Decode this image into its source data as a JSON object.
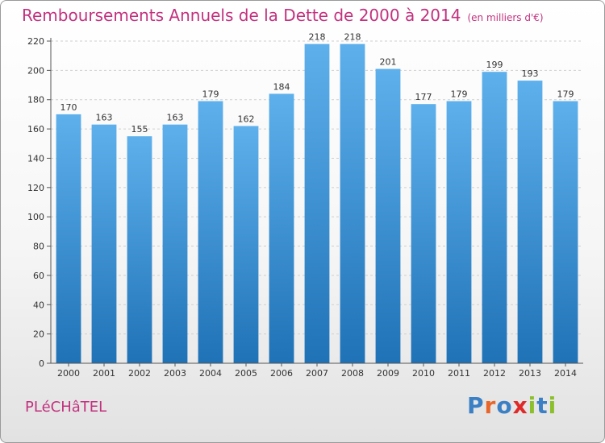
{
  "header": {
    "title": "Remboursements Annuels de la Dette de 2000 à 2014",
    "unit": "(en milliers d'€)"
  },
  "footer": {
    "city": "PLéCHâTEL",
    "brand": "Proxiti",
    "brand_letters": [
      {
        "ch": "P",
        "color": "#3b7fc4"
      },
      {
        "ch": "r",
        "color": "#e8662a"
      },
      {
        "ch": "o",
        "color": "#3b7fc4"
      },
      {
        "ch": "x",
        "color": "#e02a2a"
      },
      {
        "ch": "i",
        "color": "#8bbf2c"
      },
      {
        "ch": "t",
        "color": "#3b7fc4"
      },
      {
        "ch": "i",
        "color": "#8bbf2c"
      }
    ]
  },
  "colors": {
    "accent": "#c2317e",
    "bar_top": "#5eb0ec",
    "bar_bottom": "#1f72b6",
    "grid": "#cfcfcf"
  },
  "chart_data": {
    "type": "bar",
    "title": "Remboursements Annuels de la Dette de 2000 à 2014",
    "xlabel": "",
    "ylabel": "",
    "categories": [
      "2000",
      "2001",
      "2002",
      "2003",
      "2004",
      "2005",
      "2006",
      "2007",
      "2008",
      "2009",
      "2010",
      "2011",
      "2012",
      "2013",
      "2014"
    ],
    "values": [
      170,
      163,
      155,
      163,
      179,
      162,
      184,
      218,
      218,
      201,
      177,
      179,
      199,
      193,
      179
    ],
    "ylim": [
      0,
      220
    ],
    "yticks": [
      0,
      20,
      40,
      60,
      80,
      100,
      120,
      140,
      160,
      180,
      200,
      220
    ],
    "grid": true,
    "legend": "none"
  }
}
